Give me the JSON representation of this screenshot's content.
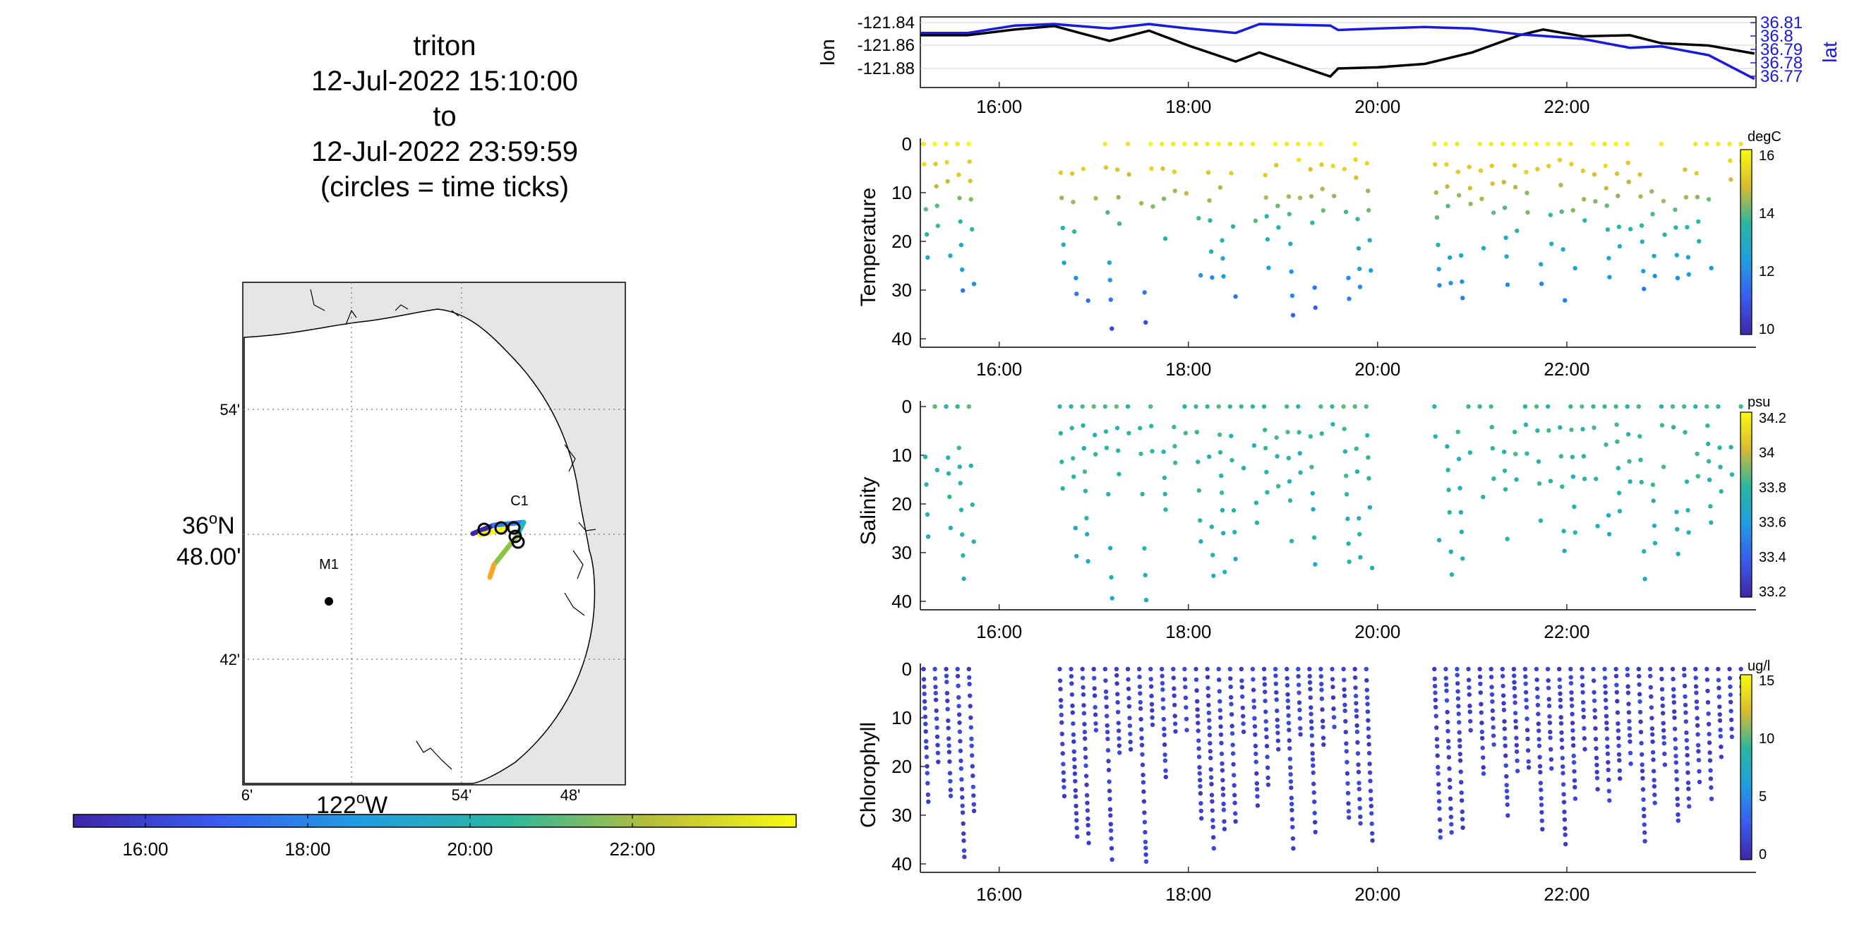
{
  "title": {
    "lines": [
      "triton",
      "12-Jul-2022 15:10:00",
      "to",
      "12-Jul-2022 23:59:59",
      "(circles = time ticks)"
    ]
  },
  "map": {
    "lat_tick_labels": [
      "54'",
      "42'"
    ],
    "lat_main_label_1": "36",
    "lat_main_label_sup": "o",
    "lat_main_label_2": "N",
    "lat_main_label_3": "48.00'",
    "lon_tick_labels": [
      "6'",
      "54'",
      "48'"
    ],
    "lon_main_label": "122",
    "lon_main_label_sup": "o",
    "lon_main_label_w": "W",
    "station_labels": [
      "M1",
      "C1"
    ],
    "colorbar_ticks": [
      "16:00",
      "18:00",
      "20:00",
      "22:00"
    ],
    "track_colors": [
      "#3e26a8",
      "#2f7fff",
      "#20b5c6",
      "#8bc53f",
      "#f5a623",
      "#f9fb0e"
    ]
  },
  "time_axis": {
    "tick_labels": [
      "16:00",
      "18:00",
      "20:00",
      "22:00"
    ]
  },
  "chart_data": [
    {
      "type": "line",
      "ylabel_left": "lon",
      "ylabel_right": "lat",
      "x": [
        "15:10",
        "15:40",
        "16:10",
        "16:35",
        "17:10",
        "17:35",
        "18:00",
        "18:30",
        "18:45",
        "19:30",
        "19:35",
        "20:00",
        "20:30",
        "21:00",
        "21:30",
        "21:45",
        "22:10",
        "22:40",
        "23:00",
        "23:30",
        "23:59"
      ],
      "left_ticks": [
        "-121.84",
        "-121.86",
        "-121.88"
      ],
      "right_ticks": [
        "36.81",
        "36.8",
        "36.79",
        "36.78",
        "36.77"
      ],
      "series": [
        {
          "color": "#000000",
          "values": [
            -121.851,
            -121.851,
            -121.846,
            -121.843,
            -121.856,
            -121.847,
            -121.86,
            -121.874,
            -121.866,
            -121.887,
            -121.88,
            -121.879,
            -121.876,
            -121.866,
            -121.851,
            -121.846,
            -121.852,
            -121.851,
            -121.858,
            -121.86,
            -121.867
          ]
        },
        {
          "color": "#1a1adb",
          "values": [
            36.803,
            36.803,
            36.808,
            36.809,
            36.806,
            36.809,
            36.806,
            36.803,
            36.809,
            36.808,
            36.805,
            36.806,
            36.807,
            36.806,
            36.802,
            36.801,
            36.799,
            36.793,
            36.794,
            36.788,
            36.772
          ]
        }
      ]
    },
    {
      "type": "scatter",
      "ylabel": "Temperature",
      "colorbar_unit": "degC",
      "colorbar_ticks": [
        "16",
        "14",
        "12",
        "10"
      ],
      "yticks": [
        "0",
        "10",
        "20",
        "30",
        "40"
      ]
    },
    {
      "type": "scatter",
      "ylabel": "Salinity",
      "colorbar_unit": "psu",
      "colorbar_ticks": [
        "34.2",
        "34",
        "33.8",
        "33.6",
        "33.4",
        "33.2"
      ],
      "yticks": [
        "0",
        "10",
        "20",
        "30",
        "40"
      ]
    },
    {
      "type": "scatter",
      "ylabel": "Chlorophyll",
      "colorbar_unit": "ug/l",
      "colorbar_ticks": [
        "15",
        "10",
        "5",
        "0"
      ],
      "yticks": [
        "0",
        "10",
        "20",
        "30",
        "40"
      ]
    }
  ]
}
